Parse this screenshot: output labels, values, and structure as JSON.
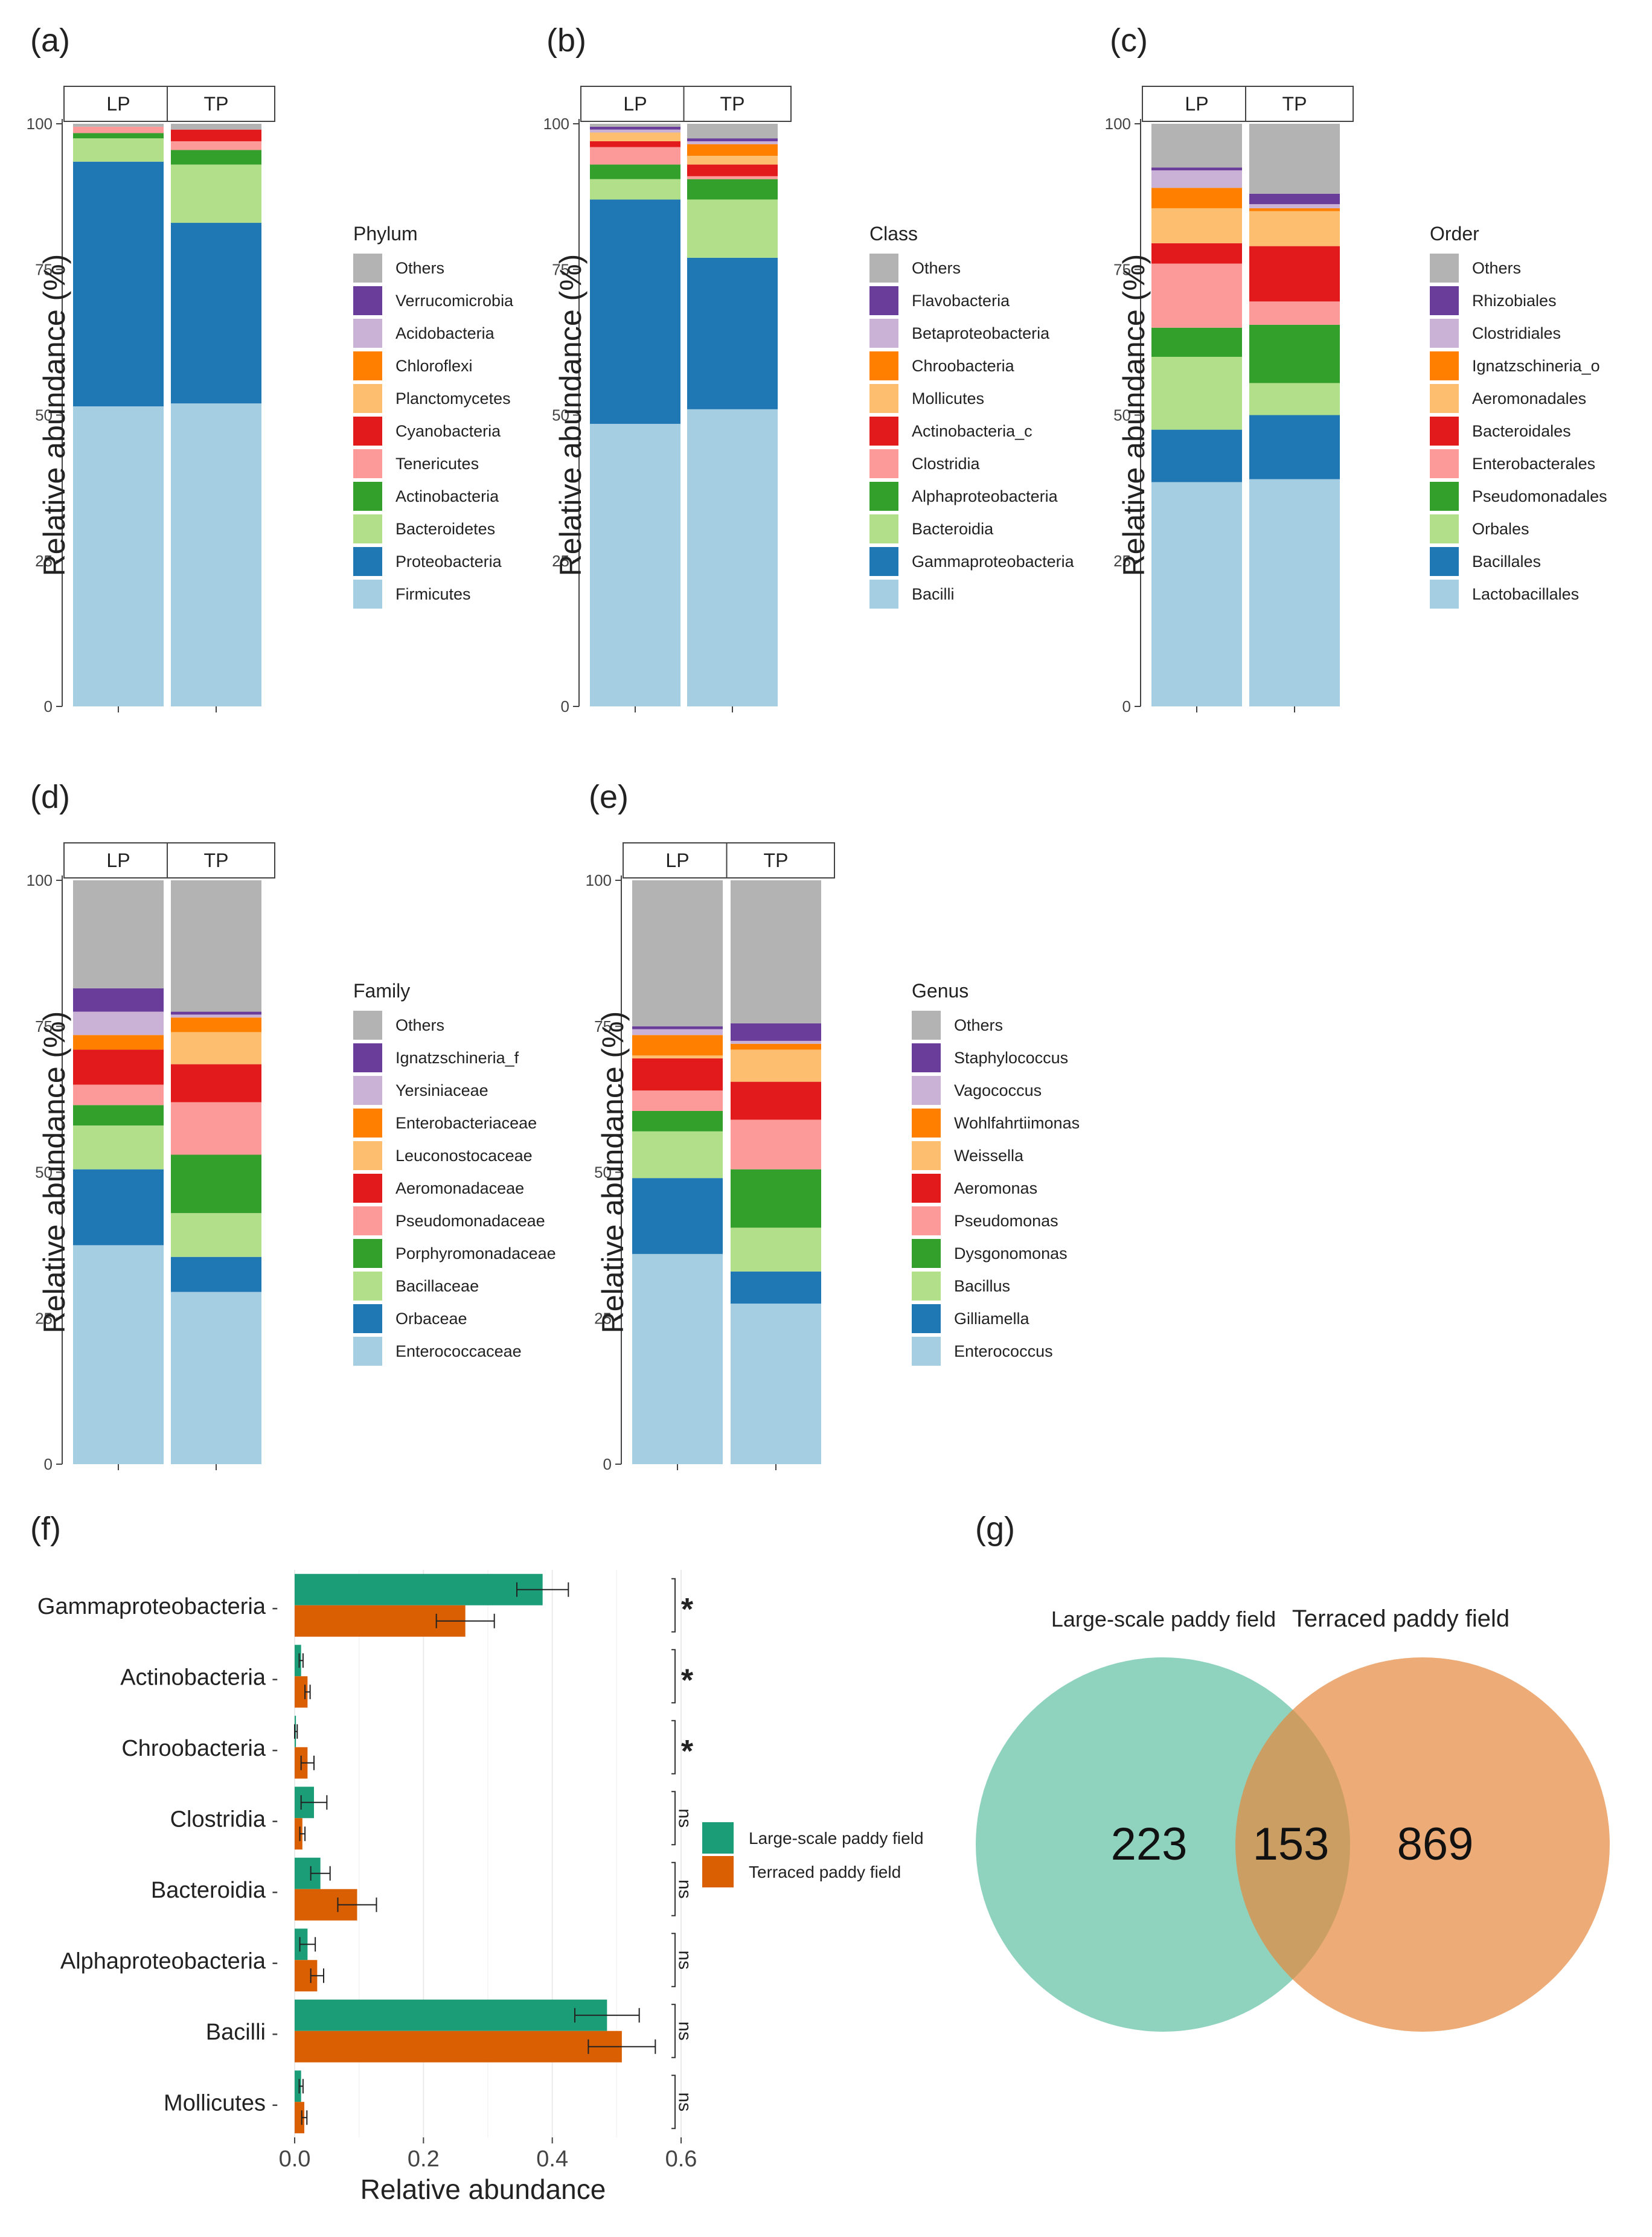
{
  "chart_data": [
    {
      "panel": "(a)",
      "type": "bar",
      "stacked": true,
      "facets": [
        "LP",
        "TP"
      ],
      "ylabel": "Relative abundance (%)",
      "ylim": [
        0,
        100
      ],
      "yticks": [
        0,
        25,
        50,
        75,
        100
      ],
      "legend_title": "Phylum",
      "series": [
        {
          "name": "Firmicutes",
          "color": "#a6cee3",
          "values": [
            51.5,
            52.0
          ]
        },
        {
          "name": "Proteobacteria",
          "color": "#1f78b4",
          "values": [
            42.0,
            31.0
          ]
        },
        {
          "name": "Bacteroidetes",
          "color": "#b2df8a",
          "values": [
            4.0,
            10.0
          ]
        },
        {
          "name": "Actinobacteria",
          "color": "#33a02c",
          "values": [
            0.9,
            2.5
          ]
        },
        {
          "name": "Tenericutes",
          "color": "#fb9a99",
          "values": [
            1.1,
            1.5
          ]
        },
        {
          "name": "Cyanobacteria",
          "color": "#e31a1c",
          "values": [
            0.0,
            2.0
          ]
        },
        {
          "name": "Planctomycetes",
          "color": "#fdbf6f",
          "values": [
            0.0,
            0.0
          ]
        },
        {
          "name": "Chloroflexi",
          "color": "#ff7f00",
          "values": [
            0.0,
            0.0
          ]
        },
        {
          "name": "Acidobacteria",
          "color": "#cab2d6",
          "values": [
            0.0,
            0.0
          ]
        },
        {
          "name": "Verrucomicrobia",
          "color": "#6a3d9a",
          "values": [
            0.0,
            0.0
          ]
        },
        {
          "name": "Others",
          "color": "#b3b3b3",
          "values": [
            0.5,
            1.0
          ]
        }
      ]
    },
    {
      "panel": "(b)",
      "type": "bar",
      "stacked": true,
      "facets": [
        "LP",
        "TP"
      ],
      "ylabel": "Relative abundance (%)",
      "ylim": [
        0,
        100
      ],
      "yticks": [
        0,
        25,
        50,
        75,
        100
      ],
      "legend_title": "Class",
      "series": [
        {
          "name": "Bacilli",
          "color": "#a6cee3",
          "values": [
            48.5,
            51.0
          ]
        },
        {
          "name": "Gammaproteobacteria",
          "color": "#1f78b4",
          "values": [
            38.5,
            26.0
          ]
        },
        {
          "name": "Bacteroidia",
          "color": "#b2df8a",
          "values": [
            3.5,
            10.0
          ]
        },
        {
          "name": "Alphaproteobacteria",
          "color": "#33a02c",
          "values": [
            2.5,
            3.5
          ]
        },
        {
          "name": "Clostridia",
          "color": "#fb9a99",
          "values": [
            3.0,
            0.5
          ]
        },
        {
          "name": "Actinobacteria_c",
          "color": "#e31a1c",
          "values": [
            1.0,
            2.0
          ]
        },
        {
          "name": "Mollicutes",
          "color": "#fdbf6f",
          "values": [
            1.5,
            1.5
          ]
        },
        {
          "name": "Chroobacteria",
          "color": "#ff7f00",
          "values": [
            0.0,
            2.0
          ]
        },
        {
          "name": "Betaproteobacteria",
          "color": "#cab2d6",
          "values": [
            0.5,
            0.5
          ]
        },
        {
          "name": "Flavobacteria",
          "color": "#6a3d9a",
          "values": [
            0.5,
            0.5
          ]
        },
        {
          "name": "Others",
          "color": "#b3b3b3",
          "values": [
            0.5,
            2.5
          ]
        }
      ]
    },
    {
      "panel": "(c)",
      "type": "bar",
      "stacked": true,
      "facets": [
        "LP",
        "TP"
      ],
      "ylabel": "Relative abundance (%)",
      "ylim": [
        0,
        100
      ],
      "yticks": [
        0,
        25,
        50,
        75,
        100
      ],
      "legend_title": "Order",
      "series": [
        {
          "name": "Lactobacillales",
          "color": "#a6cee3",
          "values": [
            38.5,
            39.0
          ]
        },
        {
          "name": "Bacillales",
          "color": "#1f78b4",
          "values": [
            9.0,
            11.0
          ]
        },
        {
          "name": "Orbales",
          "color": "#b2df8a",
          "values": [
            12.5,
            5.5
          ]
        },
        {
          "name": "Pseudomonadales",
          "color": "#33a02c",
          "values": [
            5.0,
            10.0
          ]
        },
        {
          "name": "Enterobacterales",
          "color": "#fb9a99",
          "values": [
            11.0,
            4.0
          ]
        },
        {
          "name": "Bacteroidales",
          "color": "#e31a1c",
          "values": [
            3.5,
            9.5
          ]
        },
        {
          "name": "Aeromonadales",
          "color": "#fdbf6f",
          "values": [
            6.0,
            6.0
          ]
        },
        {
          "name": "Ignatzschineria_o",
          "color": "#ff7f00",
          "values": [
            3.5,
            0.5
          ]
        },
        {
          "name": "Clostridiales",
          "color": "#cab2d6",
          "values": [
            3.0,
            0.7
          ]
        },
        {
          "name": "Rhizobiales",
          "color": "#6a3d9a",
          "values": [
            0.5,
            1.8
          ]
        },
        {
          "name": "Others",
          "color": "#b3b3b3",
          "values": [
            7.5,
            12.0
          ]
        }
      ]
    },
    {
      "panel": "(d)",
      "type": "bar",
      "stacked": true,
      "facets": [
        "LP",
        "TP"
      ],
      "ylabel": "Relative abundance (%)",
      "ylim": [
        0,
        100
      ],
      "yticks": [
        0,
        25,
        50,
        75,
        100
      ],
      "legend_title": "Family",
      "series": [
        {
          "name": "Enterococcaceae",
          "color": "#a6cee3",
          "values": [
            37.5,
            29.5
          ]
        },
        {
          "name": "Orbaceae",
          "color": "#1f78b4",
          "values": [
            13.0,
            6.0
          ]
        },
        {
          "name": "Bacillaceae",
          "color": "#b2df8a",
          "values": [
            7.5,
            7.5
          ]
        },
        {
          "name": "Porphyromonadaceae",
          "color": "#33a02c",
          "values": [
            3.5,
            10.0
          ]
        },
        {
          "name": "Pseudomonadaceae",
          "color": "#fb9a99",
          "values": [
            3.5,
            9.0
          ]
        },
        {
          "name": "Aeromonadaceae",
          "color": "#e31a1c",
          "values": [
            6.0,
            6.5
          ]
        },
        {
          "name": "Leuconostocaceae",
          "color": "#fdbf6f",
          "values": [
            0.0,
            5.5
          ]
        },
        {
          "name": "Enterobacteriaceae",
          "color": "#ff7f00",
          "values": [
            2.5,
            2.5
          ]
        },
        {
          "name": "Yersiniaceae",
          "color": "#cab2d6",
          "values": [
            4.0,
            0.5
          ]
        },
        {
          "name": "Ignatzschineria_f",
          "color": "#6a3d9a",
          "values": [
            4.0,
            0.5
          ]
        },
        {
          "name": "Others",
          "color": "#b3b3b3",
          "values": [
            18.5,
            22.5
          ]
        }
      ]
    },
    {
      "panel": "(e)",
      "type": "bar",
      "stacked": true,
      "facets": [
        "LP",
        "TP"
      ],
      "ylabel": "Relative abundance (%)",
      "ylim": [
        0,
        100
      ],
      "yticks": [
        0,
        25,
        50,
        75,
        100
      ],
      "legend_title": "Genus",
      "series": [
        {
          "name": "Enterococcus",
          "color": "#a6cee3",
          "values": [
            36.0,
            27.5
          ]
        },
        {
          "name": "Gilliamella",
          "color": "#1f78b4",
          "values": [
            13.0,
            5.5
          ]
        },
        {
          "name": "Bacillus",
          "color": "#b2df8a",
          "values": [
            8.0,
            7.5
          ]
        },
        {
          "name": "Dysgonomonas",
          "color": "#33a02c",
          "values": [
            3.5,
            10.0
          ]
        },
        {
          "name": "Pseudomonas",
          "color": "#fb9a99",
          "values": [
            3.5,
            8.5
          ]
        },
        {
          "name": "Aeromonas",
          "color": "#e31a1c",
          "values": [
            5.5,
            6.5
          ]
        },
        {
          "name": "Weissella",
          "color": "#fdbf6f",
          "values": [
            0.5,
            5.5
          ]
        },
        {
          "name": "Wohlfahrtiimonas",
          "color": "#ff7f00",
          "values": [
            3.5,
            1.0
          ]
        },
        {
          "name": "Vagococcus",
          "color": "#cab2d6",
          "values": [
            1.0,
            0.5
          ]
        },
        {
          "name": "Staphylococcus",
          "color": "#6a3d9a",
          "values": [
            0.5,
            3.0
          ]
        },
        {
          "name": "Others",
          "color": "#b3b3b3",
          "values": [
            25.0,
            24.5
          ]
        }
      ]
    },
    {
      "panel": "(f)",
      "type": "bar",
      "orientation": "horizontal",
      "xlabel": "Relative abundance",
      "xlim": [
        0,
        0.6
      ],
      "xticks": [
        "0.0",
        "0.2",
        "0.4",
        "0.6"
      ],
      "categories": [
        "Gammaproteobacteria",
        "Actinobacteria",
        "Chroobacteria",
        "Clostridia",
        "Bacteroidia",
        "Alphaproteobacteria",
        "Bacilli",
        "Mollicutes"
      ],
      "significance": [
        "*",
        "*",
        "*",
        "ns",
        "ns",
        "ns",
        "ns",
        "ns"
      ],
      "series": [
        {
          "name": "Large-scale paddy field",
          "color": "#1b9e77",
          "values": [
            0.385,
            0.01,
            0.002,
            0.03,
            0.04,
            0.02,
            0.485,
            0.01
          ],
          "errors": [
            0.04,
            0.003,
            0.002,
            0.02,
            0.015,
            0.012,
            0.05,
            0.003
          ]
        },
        {
          "name": "Terraced paddy field",
          "color": "#d95f02",
          "values": [
            0.265,
            0.02,
            0.02,
            0.012,
            0.097,
            0.035,
            0.508,
            0.015
          ],
          "errors": [
            0.045,
            0.004,
            0.01,
            0.004,
            0.03,
            0.01,
            0.052,
            0.004
          ]
        }
      ]
    },
    {
      "panel": "(g)",
      "type": "venn",
      "sets": [
        {
          "name": "Large-scale paddy field",
          "color": "#5fc1a3",
          "unique": 223
        },
        {
          "name": "Terraced paddy field",
          "color": "#e4873d",
          "unique": 869
        }
      ],
      "shared": 153
    }
  ]
}
